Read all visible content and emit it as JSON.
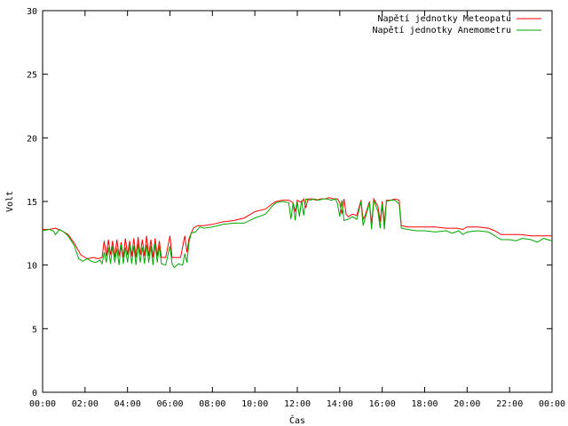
{
  "chart_data": {
    "type": "line",
    "title": "",
    "xlabel": "Čas",
    "ylabel": "Volt",
    "xlim": [
      0,
      24
    ],
    "ylim": [
      0,
      30
    ],
    "grid": false,
    "legend_position": "top-right",
    "x_tick_labels": [
      "00:00",
      "02:00",
      "04:00",
      "06:00",
      "08:00",
      "10:00",
      "12:00",
      "14:00",
      "16:00",
      "18:00",
      "20:00",
      "22:00",
      "00:00"
    ],
    "y_ticks": [
      0,
      5,
      10,
      15,
      20,
      25,
      30
    ],
    "series": [
      {
        "name": "Napětí jednotky Meteopatu",
        "color": "#ff0000",
        "points": [
          [
            0.0,
            12.8
          ],
          [
            0.3,
            12.8
          ],
          [
            0.6,
            12.9
          ],
          [
            0.9,
            12.7
          ],
          [
            1.2,
            12.4
          ],
          [
            1.5,
            11.7
          ],
          [
            1.8,
            10.8
          ],
          [
            2.1,
            10.5
          ],
          [
            2.4,
            10.6
          ],
          [
            2.6,
            10.5
          ],
          [
            2.8,
            10.6
          ],
          [
            2.9,
            11.9
          ],
          [
            3.0,
            10.7
          ],
          [
            3.1,
            12.0
          ],
          [
            3.2,
            10.8
          ],
          [
            3.3,
            11.9
          ],
          [
            3.4,
            10.6
          ],
          [
            3.5,
            12.0
          ],
          [
            3.6,
            10.7
          ],
          [
            3.7,
            11.8
          ],
          [
            3.8,
            10.6
          ],
          [
            3.9,
            12.1
          ],
          [
            4.0,
            10.8
          ],
          [
            4.1,
            11.9
          ],
          [
            4.2,
            10.7
          ],
          [
            4.3,
            12.1
          ],
          [
            4.4,
            10.6
          ],
          [
            4.5,
            12.2
          ],
          [
            4.6,
            10.8
          ],
          [
            4.7,
            12.0
          ],
          [
            4.8,
            10.7
          ],
          [
            4.9,
            12.3
          ],
          [
            5.0,
            10.7
          ],
          [
            5.1,
            12.0
          ],
          [
            5.2,
            10.6
          ],
          [
            5.3,
            12.1
          ],
          [
            5.4,
            10.7
          ],
          [
            5.5,
            11.9
          ],
          [
            5.6,
            10.6
          ],
          [
            5.8,
            10.6
          ],
          [
            6.0,
            12.3
          ],
          [
            6.1,
            10.6
          ],
          [
            6.3,
            10.6
          ],
          [
            6.5,
            10.6
          ],
          [
            6.7,
            12.3
          ],
          [
            6.8,
            11.0
          ],
          [
            6.9,
            12.1
          ],
          [
            7.1,
            12.9
          ],
          [
            7.3,
            13.1
          ],
          [
            7.6,
            13.1
          ],
          [
            8.0,
            13.2
          ],
          [
            8.5,
            13.4
          ],
          [
            9.0,
            13.5
          ],
          [
            9.5,
            13.7
          ],
          [
            10.0,
            14.2
          ],
          [
            10.5,
            14.4
          ],
          [
            10.8,
            14.8
          ],
          [
            11.0,
            15.0
          ],
          [
            11.3,
            15.1
          ],
          [
            11.6,
            15.1
          ],
          [
            11.8,
            14.9
          ],
          [
            11.9,
            14.2
          ],
          [
            12.0,
            15.1
          ],
          [
            12.2,
            14.9
          ],
          [
            12.3,
            15.2
          ],
          [
            12.4,
            14.5
          ],
          [
            12.5,
            15.2
          ],
          [
            12.7,
            15.2
          ],
          [
            12.9,
            15.1
          ],
          [
            13.1,
            15.2
          ],
          [
            13.3,
            15.2
          ],
          [
            13.5,
            15.3
          ],
          [
            13.7,
            15.2
          ],
          [
            13.9,
            15.2
          ],
          [
            14.0,
            14.9
          ],
          [
            14.1,
            14.0
          ],
          [
            14.2,
            15.2
          ],
          [
            14.3,
            14.0
          ],
          [
            14.4,
            13.8
          ],
          [
            14.6,
            14.0
          ],
          [
            14.8,
            13.9
          ],
          [
            15.0,
            15.1
          ],
          [
            15.1,
            13.6
          ],
          [
            15.2,
            13.9
          ],
          [
            15.4,
            15.0
          ],
          [
            15.5,
            13.2
          ],
          [
            15.6,
            15.2
          ],
          [
            15.8,
            14.6
          ],
          [
            15.9,
            13.4
          ],
          [
            16.0,
            15.0
          ],
          [
            16.1,
            13.3
          ],
          [
            16.2,
            15.1
          ],
          [
            16.4,
            15.1
          ],
          [
            16.6,
            15.2
          ],
          [
            16.8,
            15.1
          ],
          [
            16.9,
            13.1
          ],
          [
            17.2,
            13.0
          ],
          [
            17.6,
            13.0
          ],
          [
            18.0,
            13.0
          ],
          [
            18.5,
            13.0
          ],
          [
            19.0,
            12.9
          ],
          [
            19.5,
            12.9
          ],
          [
            19.8,
            12.8
          ],
          [
            20.0,
            13.0
          ],
          [
            20.5,
            13.0
          ],
          [
            21.0,
            12.9
          ],
          [
            21.3,
            12.7
          ],
          [
            21.6,
            12.4
          ],
          [
            22.0,
            12.4
          ],
          [
            22.5,
            12.4
          ],
          [
            23.0,
            12.3
          ],
          [
            23.5,
            12.3
          ],
          [
            24.0,
            12.3
          ]
        ]
      },
      {
        "name": "Napětí jednotky Anemometru",
        "color": "#00aa00",
        "points": [
          [
            0.0,
            12.7
          ],
          [
            0.3,
            12.8
          ],
          [
            0.5,
            12.7
          ],
          [
            0.6,
            12.4
          ],
          [
            0.8,
            12.8
          ],
          [
            1.0,
            12.6
          ],
          [
            1.2,
            12.3
          ],
          [
            1.5,
            11.5
          ],
          [
            1.7,
            10.5
          ],
          [
            1.9,
            10.3
          ],
          [
            2.1,
            10.5
          ],
          [
            2.3,
            10.3
          ],
          [
            2.5,
            10.2
          ],
          [
            2.7,
            10.4
          ],
          [
            2.8,
            10.1
          ],
          [
            2.9,
            11.0
          ],
          [
            3.0,
            10.2
          ],
          [
            3.1,
            11.4
          ],
          [
            3.2,
            10.1
          ],
          [
            3.3,
            11.5
          ],
          [
            3.4,
            10.2
          ],
          [
            3.5,
            11.3
          ],
          [
            3.6,
            10.0
          ],
          [
            3.7,
            11.6
          ],
          [
            3.8,
            10.1
          ],
          [
            3.9,
            11.4
          ],
          [
            4.0,
            10.2
          ],
          [
            4.1,
            11.6
          ],
          [
            4.2,
            10.1
          ],
          [
            4.3,
            11.5
          ],
          [
            4.4,
            10.0
          ],
          [
            4.5,
            11.7
          ],
          [
            4.6,
            10.2
          ],
          [
            4.7,
            11.4
          ],
          [
            4.8,
            10.1
          ],
          [
            4.9,
            11.6
          ],
          [
            5.0,
            10.2
          ],
          [
            5.1,
            11.5
          ],
          [
            5.2,
            10.0
          ],
          [
            5.3,
            11.7
          ],
          [
            5.4,
            10.2
          ],
          [
            5.5,
            11.5
          ],
          [
            5.6,
            10.1
          ],
          [
            5.8,
            10.0
          ],
          [
            6.0,
            11.5
          ],
          [
            6.1,
            10.1
          ],
          [
            6.2,
            9.8
          ],
          [
            6.4,
            10.1
          ],
          [
            6.6,
            10.0
          ],
          [
            6.7,
            10.9
          ],
          [
            6.8,
            10.2
          ],
          [
            6.9,
            11.8
          ],
          [
            7.0,
            12.5
          ],
          [
            7.2,
            12.6
          ],
          [
            7.4,
            13.0
          ],
          [
            7.6,
            12.9
          ],
          [
            8.0,
            13.0
          ],
          [
            8.5,
            13.2
          ],
          [
            9.0,
            13.3
          ],
          [
            9.5,
            13.3
          ],
          [
            10.0,
            13.7
          ],
          [
            10.5,
            14.0
          ],
          [
            10.8,
            14.6
          ],
          [
            11.0,
            14.9
          ],
          [
            11.3,
            15.0
          ],
          [
            11.6,
            14.9
          ],
          [
            11.7,
            13.6
          ],
          [
            11.8,
            14.9
          ],
          [
            11.9,
            13.5
          ],
          [
            12.0,
            15.0
          ],
          [
            12.1,
            13.8
          ],
          [
            12.2,
            15.1
          ],
          [
            12.3,
            13.9
          ],
          [
            12.4,
            15.2
          ],
          [
            12.6,
            15.1
          ],
          [
            12.8,
            15.2
          ],
          [
            13.0,
            15.1
          ],
          [
            13.2,
            15.2
          ],
          [
            13.4,
            15.2
          ],
          [
            13.6,
            15.1
          ],
          [
            13.8,
            15.2
          ],
          [
            13.9,
            14.8
          ],
          [
            14.0,
            13.8
          ],
          [
            14.1,
            15.1
          ],
          [
            14.2,
            13.5
          ],
          [
            14.4,
            13.6
          ],
          [
            14.6,
            13.8
          ],
          [
            14.8,
            13.6
          ],
          [
            15.0,
            15.0
          ],
          [
            15.1,
            13.1
          ],
          [
            15.2,
            13.7
          ],
          [
            15.4,
            14.9
          ],
          [
            15.5,
            12.8
          ],
          [
            15.6,
            15.1
          ],
          [
            15.8,
            14.2
          ],
          [
            15.9,
            12.9
          ],
          [
            16.0,
            14.8
          ],
          [
            16.1,
            12.8
          ],
          [
            16.2,
            15.0
          ],
          [
            16.4,
            15.1
          ],
          [
            16.6,
            15.1
          ],
          [
            16.8,
            14.8
          ],
          [
            16.9,
            12.9
          ],
          [
            17.2,
            12.8
          ],
          [
            17.6,
            12.7
          ],
          [
            18.0,
            12.7
          ],
          [
            18.5,
            12.6
          ],
          [
            19.0,
            12.7
          ],
          [
            19.3,
            12.5
          ],
          [
            19.6,
            12.7
          ],
          [
            19.8,
            12.4
          ],
          [
            20.0,
            12.6
          ],
          [
            20.5,
            12.7
          ],
          [
            21.0,
            12.6
          ],
          [
            21.3,
            12.3
          ],
          [
            21.6,
            12.0
          ],
          [
            22.0,
            12.0
          ],
          [
            22.3,
            11.9
          ],
          [
            22.6,
            12.1
          ],
          [
            23.0,
            12.0
          ],
          [
            23.3,
            11.8
          ],
          [
            23.6,
            12.1
          ],
          [
            24.0,
            11.9
          ]
        ]
      }
    ]
  }
}
